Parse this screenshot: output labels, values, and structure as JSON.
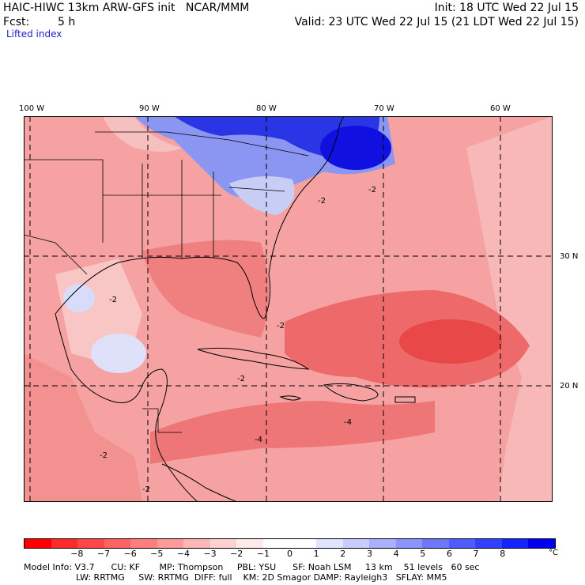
{
  "header": {
    "model_title": "HAIC-HIWC 13km ARW-GFS init   NCAR/MMM",
    "init": "Init: 18 UTC Wed 22 Jul 15",
    "fcst_label": "Fcst:",
    "fcst_value": "5 h",
    "valid": "Valid: 23 UTC Wed 22 Jul 15 (21 LDT Wed 22 Jul 15)",
    "field": "Lifted index"
  },
  "map": {
    "lon_labels": [
      "100 W",
      "90 W",
      "80 W",
      "70 W",
      "60 W"
    ],
    "lat_labels": [
      "30 N",
      "20 N"
    ],
    "contour_labels": [
      "-2",
      "-4"
    ],
    "colors": {
      "deep_blue": "#1010e0",
      "blue": "#5a6af0",
      "light_blue": "#b4bef8",
      "pale_pink": "#fbd4d4",
      "pink": "#f6a2a2",
      "red": "#f07272",
      "deep_red": "#e84848",
      "grid": "#000000"
    }
  },
  "colorbar": {
    "colors": [
      "#ff0000",
      "#ff2a2a",
      "#ff4646",
      "#ff6262",
      "#ff7e7e",
      "#ff9a9a",
      "#ffb6b6",
      "#ffd2d2",
      "#ffeaea",
      "#ffffff",
      "#ffffff",
      "#e0e4ff",
      "#c8ccff",
      "#aab0ff",
      "#8c94ff",
      "#6e78ff",
      "#505cff",
      "#3240ff",
      "#1424ff",
      "#0000f0"
    ],
    "labels": [
      "−8",
      "−7",
      "−6",
      "−5",
      "−4",
      "−3",
      "−2",
      "−1",
      "0",
      "1",
      "2",
      "3",
      "4",
      "5",
      "6",
      "7",
      "8"
    ],
    "unit": "°C"
  },
  "model_info": {
    "line1": "Model Info: V3.7      CU: KF       MP: Thompson     PBL: YSU      SF: Noah LSM     13 km    51 levels   60 sec",
    "line2": "LW: RRTMG     SW: RRTMG  DIFF: full    KM: 2D Smagor DAMP: Rayleigh3   SFLAY: MM5"
  }
}
